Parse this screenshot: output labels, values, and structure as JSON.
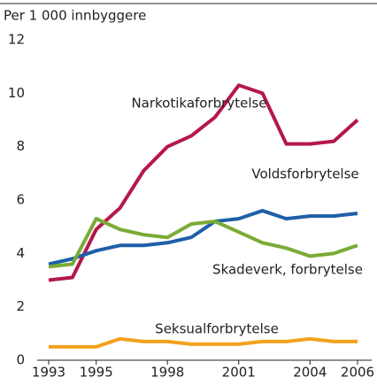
{
  "chart_data": {
    "type": "line",
    "y_axis_label": "Per 1 000 innbyggere",
    "x": [
      1993,
      1994,
      1995,
      1996,
      1997,
      1998,
      1999,
      2000,
      2001,
      2002,
      2003,
      2004,
      2005,
      2006
    ],
    "xlim": [
      1993,
      2006
    ],
    "xticks": [
      1993,
      1995,
      1998,
      2001,
      2004,
      2006
    ],
    "ylim": [
      0,
      12
    ],
    "yticks": [
      0,
      2,
      4,
      6,
      8,
      10,
      12
    ],
    "grid": false,
    "legend": "inline",
    "series": [
      {
        "name": "Narkotikaforbrytelse",
        "color": "#b5174b",
        "values": [
          3.0,
          3.1,
          4.9,
          5.7,
          7.1,
          8.0,
          8.4,
          9.1,
          10.3,
          10.0,
          8.1,
          8.1,
          8.2,
          9.0
        ]
      },
      {
        "name": "Voldsforbrytelse",
        "color": "#1f5fa8",
        "values": [
          3.6,
          3.8,
          4.1,
          4.3,
          4.3,
          4.4,
          4.6,
          5.2,
          5.3,
          5.6,
          5.3,
          5.4,
          5.4,
          5.5
        ]
      },
      {
        "name": "Skadeverk, forbrytelse",
        "color": "#7aab36",
        "values": [
          3.5,
          3.6,
          5.3,
          4.9,
          4.7,
          4.6,
          5.1,
          5.2,
          4.8,
          4.4,
          4.2,
          3.9,
          4.0,
          4.3
        ]
      },
      {
        "name": "Seksualforbrytelse",
        "color": "#f2a21e",
        "values": [
          0.5,
          0.5,
          0.5,
          0.8,
          0.7,
          0.7,
          0.6,
          0.6,
          0.6,
          0.7,
          0.7,
          0.8,
          0.7,
          0.7
        ]
      }
    ]
  }
}
